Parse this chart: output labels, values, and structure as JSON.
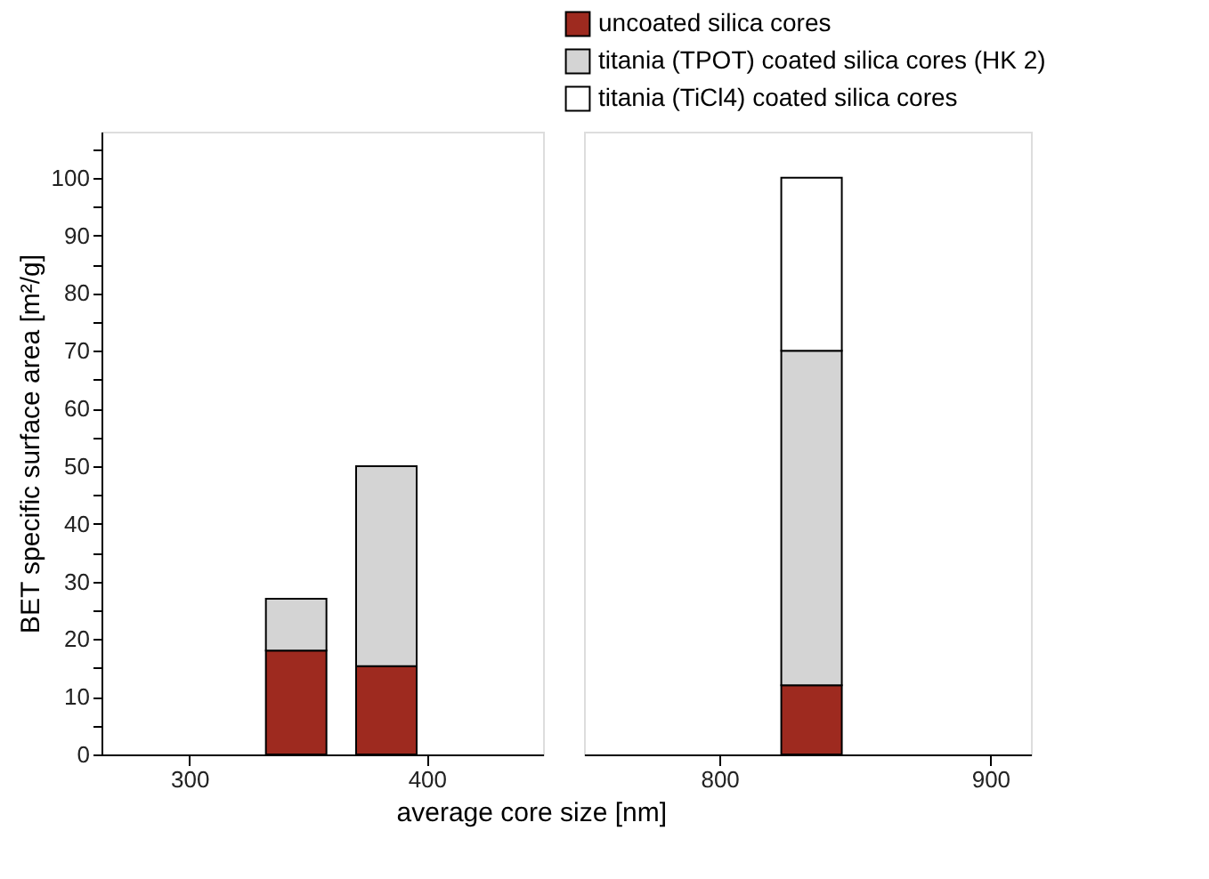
{
  "chart_data": [
    {
      "type": "bar",
      "stacked": true,
      "ylabel": "BET specific surface area [m²/g]",
      "xlabel": "average core size [nm]",
      "x": [
        345,
        383
      ],
      "xlim": [
        263,
        449
      ],
      "xticks": [
        300,
        400
      ],
      "ylim": [
        0,
        108
      ],
      "yticks": [
        0,
        {
          "value": 5,
          "label": null
        },
        10,
        {
          "value": 15,
          "label": null
        },
        20,
        {
          "value": 25,
          "label": null
        },
        30,
        {
          "value": 35,
          "label": null
        },
        40,
        {
          "value": 45,
          "label": null
        },
        50,
        {
          "value": 55,
          "label": null
        },
        60,
        {
          "value": 65,
          "label": null
        },
        70,
        {
          "value": 75,
          "label": null
        },
        80,
        {
          "value": 85,
          "label": null
        },
        90,
        {
          "value": 95,
          "label": null
        },
        100,
        {
          "value": 105,
          "label": null
        }
      ],
      "grid": false,
      "series": [
        {
          "color": "#9e2a1f",
          "values": [
            18,
            15.3
          ]
        },
        {
          "color": "#d4d4d4",
          "values": [
            9,
            34.7
          ]
        }
      ]
    },
    {
      "type": "bar",
      "stacked": true,
      "x": [
        834
      ],
      "xlim": [
        750,
        915
      ],
      "xticks": [
        800,
        900
      ],
      "ylim": [
        0,
        108
      ],
      "tick_labels": "x",
      "grid": false,
      "legend": "top right",
      "series": [
        {
          "name": "uncoated silica cores",
          "color": "#9e2a1f",
          "values": [
            12
          ]
        },
        {
          "name": "titania (TPOT) coated silica cores (HK 2)",
          "color": "#d4d4d4",
          "values": [
            58
          ]
        },
        {
          "name": "titania (TiCl4) coated silica cores",
          "color": "#ffffff",
          "values": [
            30
          ]
        }
      ]
    }
  ]
}
